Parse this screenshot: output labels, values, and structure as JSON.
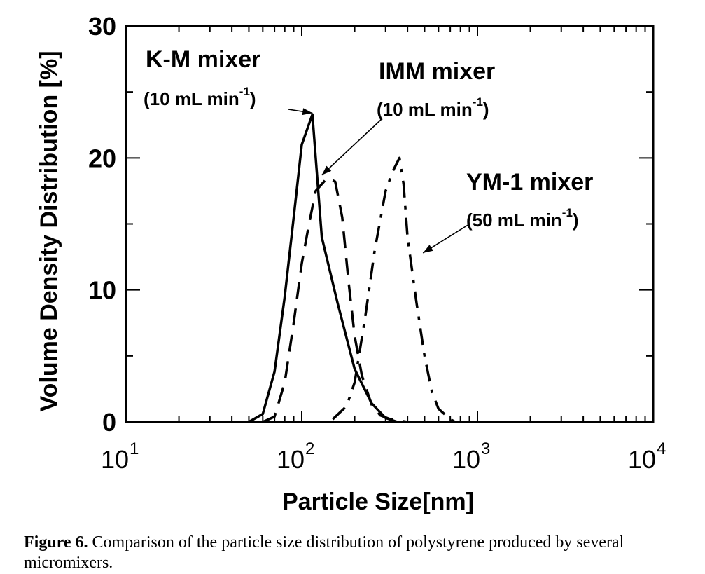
{
  "chart_data": {
    "type": "line",
    "xlabel": "Particle Size[nm]",
    "ylabel": "Volume Density Distribution [%]",
    "x_scale": "log",
    "xlim": [
      10,
      10000
    ],
    "ylim": [
      0,
      30
    ],
    "x_ticks": [
      {
        "base": "10",
        "exp": "1"
      },
      {
        "base": "10",
        "exp": "2"
      },
      {
        "base": "10",
        "exp": "3"
      },
      {
        "base": "10",
        "exp": "4"
      }
    ],
    "y_ticks": [
      "0",
      "10",
      "20",
      "30"
    ],
    "legend": "none",
    "series": [
      {
        "style": "solid",
        "x": [
          20,
          50,
          60,
          70,
          80,
          90,
          100,
          115,
          130,
          160,
          200,
          250,
          300,
          350
        ],
        "y": [
          0,
          0,
          0.6,
          3.8,
          9.5,
          15.5,
          21,
          23.3,
          14,
          9,
          4,
          1.4,
          0.3,
          0
        ]
      },
      {
        "style": "dashed",
        "x": [
          60,
          70,
          80,
          90,
          100,
          110,
          120,
          140,
          155,
          170,
          185,
          200,
          220,
          250,
          280,
          320,
          400
        ],
        "y": [
          0,
          0.4,
          3,
          7.5,
          12,
          15,
          17.5,
          18.5,
          18.2,
          15.5,
          10.5,
          6.5,
          3.5,
          1.3,
          0.5,
          0.2,
          0
        ]
      },
      {
        "style": "dash-dot",
        "x": [
          150,
          180,
          200,
          230,
          260,
          300,
          330,
          360,
          380,
          400,
          450,
          500,
          550,
          600,
          700,
          750
        ],
        "y": [
          0.2,
          1.2,
          3,
          8,
          13,
          17.5,
          19,
          20,
          18,
          14,
          9,
          5,
          2.3,
          1,
          0.2,
          0
        ]
      }
    ],
    "annotations": [
      {
        "title": "K-M mixer",
        "rate": "(10 mL min",
        "rate_sup": "-1",
        "rate_close": ")",
        "arrow_to": [
          115,
          23.4
        ]
      },
      {
        "title": "IMM mixer",
        "rate": "(10 mL min",
        "rate_sup": "-1",
        "rate_close": ")",
        "arrow_to": [
          130,
          18.7
        ]
      },
      {
        "title": "YM-1 mixer",
        "rate": "(50 mL min",
        "rate_sup": "-1",
        "rate_close": ")",
        "arrow_to": [
          490,
          12.8
        ]
      }
    ]
  },
  "caption": {
    "label": "Figure 6.",
    "text": " Comparison of the particle size distribution of polystyrene produced by several micromixers."
  }
}
